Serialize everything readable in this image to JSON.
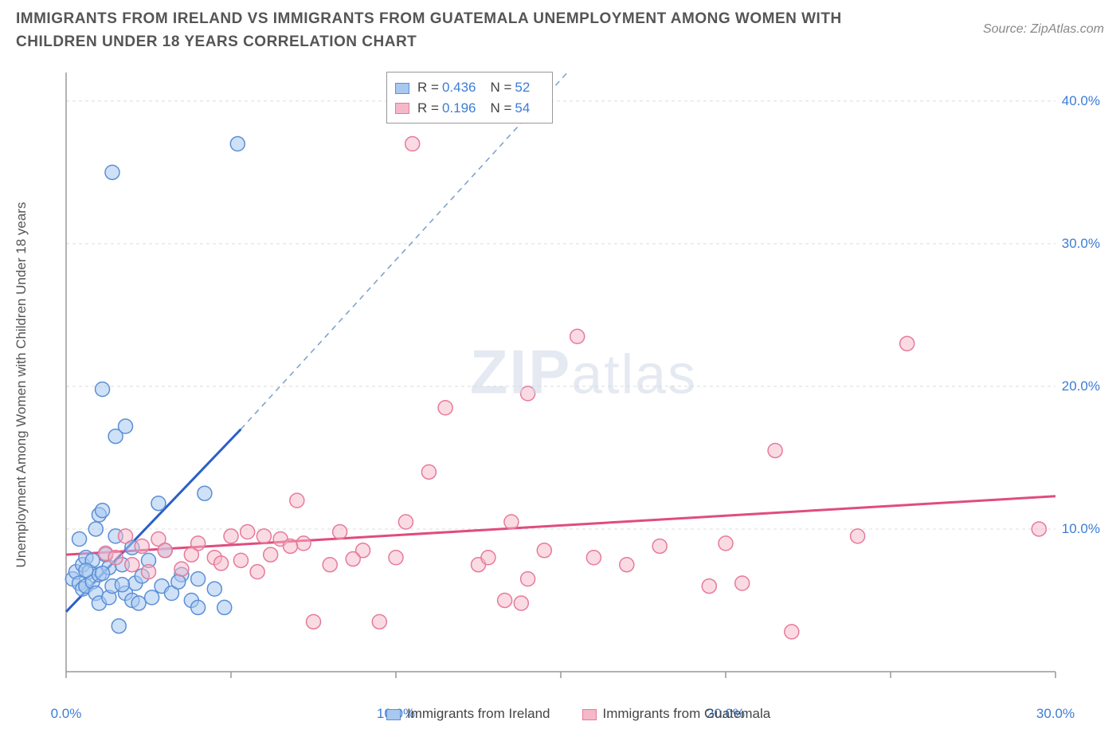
{
  "title": "IMMIGRANTS FROM IRELAND VS IMMIGRANTS FROM GUATEMALA UNEMPLOYMENT AMONG WOMEN WITH CHILDREN UNDER 18 YEARS CORRELATION CHART",
  "source": "Source: ZipAtlas.com",
  "ylabel": "Unemployment Among Women with Children Under 18 years",
  "watermark_zip": "ZIP",
  "watermark_atlas": "atlas",
  "chart": {
    "type": "scatter",
    "xlim": [
      0,
      30
    ],
    "ylim": [
      0,
      42
    ],
    "xtick_labels": [
      "0.0%",
      "10.0%",
      "20.0%",
      "30.0%"
    ],
    "xtick_positions": [
      0,
      10,
      20,
      30
    ],
    "ytick_labels": [
      "10.0%",
      "20.0%",
      "30.0%",
      "40.0%"
    ],
    "ytick_positions": [
      10,
      20,
      30,
      40
    ],
    "xtick_minor": [
      5,
      15,
      25
    ],
    "grid_color": "#dcdcdc",
    "axis_color": "#999",
    "background_color": "#ffffff",
    "marker_radius": 9,
    "marker_stroke_width": 1.5,
    "series": [
      {
        "name": "Immigrants from Ireland",
        "fill": "#a8c8f0",
        "fill_opacity": 0.55,
        "stroke": "#5b8fd6",
        "trend_color": "#2a5fc9",
        "trend_dash_color": "#7a9fc9",
        "trend": {
          "x1": 0,
          "y1": 4.2,
          "x2": 5.3,
          "y2": 17.0,
          "dash_x2": 15.2,
          "dash_y2": 42
        },
        "points": [
          [
            0.2,
            6.5
          ],
          [
            0.3,
            7.0
          ],
          [
            0.4,
            6.2
          ],
          [
            0.5,
            7.5
          ],
          [
            0.5,
            5.8
          ],
          [
            0.6,
            6.0
          ],
          [
            0.6,
            8.0
          ],
          [
            0.7,
            7.0
          ],
          [
            0.8,
            6.3
          ],
          [
            0.8,
            7.8
          ],
          [
            0.9,
            5.5
          ],
          [
            0.9,
            10.0
          ],
          [
            1.0,
            6.8
          ],
          [
            1.0,
            4.8
          ],
          [
            1.0,
            11.0
          ],
          [
            1.1,
            11.3
          ],
          [
            1.1,
            19.8
          ],
          [
            1.2,
            8.2
          ],
          [
            1.3,
            5.2
          ],
          [
            1.3,
            7.3
          ],
          [
            1.4,
            6.0
          ],
          [
            1.4,
            35.0
          ],
          [
            1.5,
            9.5
          ],
          [
            1.5,
            16.5
          ],
          [
            1.6,
            3.2
          ],
          [
            1.7,
            7.5
          ],
          [
            1.8,
            5.5
          ],
          [
            1.8,
            17.2
          ],
          [
            2.0,
            8.7
          ],
          [
            2.0,
            5.0
          ],
          [
            2.1,
            6.2
          ],
          [
            2.2,
            4.8
          ],
          [
            2.5,
            7.8
          ],
          [
            2.6,
            5.2
          ],
          [
            2.8,
            11.8
          ],
          [
            2.9,
            6.0
          ],
          [
            3.0,
            8.5
          ],
          [
            3.2,
            5.5
          ],
          [
            3.5,
            6.8
          ],
          [
            3.8,
            5.0
          ],
          [
            4.0,
            4.5
          ],
          [
            4.0,
            6.5
          ],
          [
            4.2,
            12.5
          ],
          [
            4.5,
            5.8
          ],
          [
            4.8,
            4.5
          ],
          [
            5.2,
            37.0
          ],
          [
            0.4,
            9.3
          ],
          [
            0.6,
            7.1
          ],
          [
            1.1,
            6.9
          ],
          [
            1.7,
            6.1
          ],
          [
            2.3,
            6.7
          ],
          [
            3.4,
            6.3
          ]
        ]
      },
      {
        "name": "Immigrants from Guatemala",
        "fill": "#f5b8c8",
        "fill_opacity": 0.5,
        "stroke": "#e67a9a",
        "trend_color": "#e04c7f",
        "trend": {
          "x1": 0,
          "y1": 8.2,
          "x2": 30,
          "y2": 12.3
        },
        "points": [
          [
            1.2,
            8.3
          ],
          [
            1.5,
            8.0
          ],
          [
            1.8,
            9.5
          ],
          [
            2.0,
            7.5
          ],
          [
            2.3,
            8.8
          ],
          [
            2.5,
            7.0
          ],
          [
            2.8,
            9.3
          ],
          [
            3.0,
            8.5
          ],
          [
            3.5,
            7.2
          ],
          [
            4.0,
            9.0
          ],
          [
            4.5,
            8.0
          ],
          [
            5.0,
            9.5
          ],
          [
            5.3,
            7.8
          ],
          [
            5.5,
            9.8
          ],
          [
            5.8,
            7.0
          ],
          [
            6.0,
            9.5
          ],
          [
            6.2,
            8.2
          ],
          [
            6.5,
            9.3
          ],
          [
            7.0,
            12.0
          ],
          [
            7.2,
            9.0
          ],
          [
            7.5,
            3.5
          ],
          [
            8.0,
            7.5
          ],
          [
            8.3,
            9.8
          ],
          [
            9.0,
            8.5
          ],
          [
            9.5,
            3.5
          ],
          [
            10.0,
            8.0
          ],
          [
            10.3,
            10.5
          ],
          [
            10.5,
            37.0
          ],
          [
            11.0,
            14.0
          ],
          [
            11.5,
            18.5
          ],
          [
            12.5,
            7.5
          ],
          [
            12.8,
            8.0
          ],
          [
            13.3,
            5.0
          ],
          [
            13.5,
            10.5
          ],
          [
            13.8,
            4.8
          ],
          [
            14.0,
            6.5
          ],
          [
            14.0,
            19.5
          ],
          [
            14.5,
            8.5
          ],
          [
            15.5,
            23.5
          ],
          [
            16.0,
            8.0
          ],
          [
            17.0,
            7.5
          ],
          [
            18.0,
            8.8
          ],
          [
            19.5,
            6.0
          ],
          [
            20.0,
            9.0
          ],
          [
            20.5,
            6.2
          ],
          [
            21.5,
            15.5
          ],
          [
            22.0,
            2.8
          ],
          [
            24.0,
            9.5
          ],
          [
            25.5,
            23.0
          ],
          [
            29.5,
            10.0
          ],
          [
            3.8,
            8.2
          ],
          [
            4.7,
            7.6
          ],
          [
            6.8,
            8.8
          ],
          [
            8.7,
            7.9
          ]
        ]
      }
    ]
  },
  "stats": {
    "rows": [
      {
        "swatch_fill": "#a8c8f0",
        "swatch_stroke": "#5b8fd6",
        "r": "0.436",
        "n": "52"
      },
      {
        "swatch_fill": "#f5b8c8",
        "swatch_stroke": "#e67a9a",
        "r": "0.196",
        "n": "54"
      }
    ],
    "r_label": "R =",
    "n_label": "N ="
  },
  "legend": {
    "items": [
      {
        "swatch_fill": "#a8c8f0",
        "swatch_stroke": "#5b8fd6",
        "label": "Immigrants from Ireland"
      },
      {
        "swatch_fill": "#f5b8c8",
        "swatch_stroke": "#e67a9a",
        "label": "Immigrants from Guatemala"
      }
    ]
  }
}
